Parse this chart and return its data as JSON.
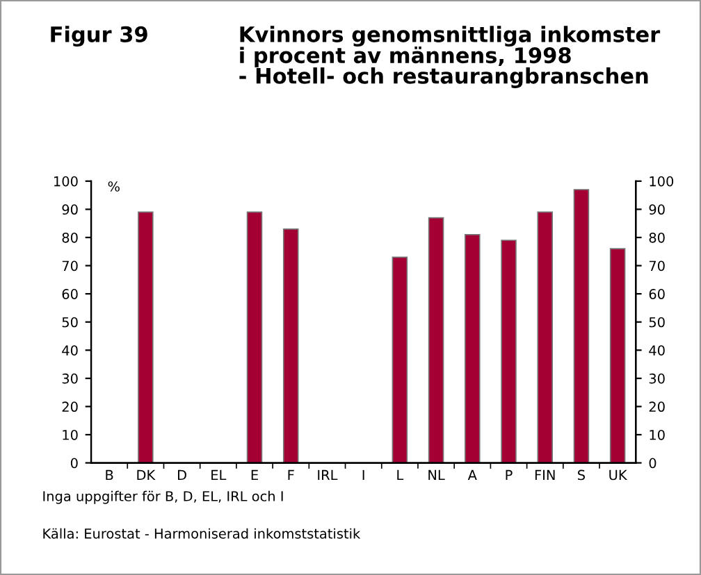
{
  "chart_data": {
    "type": "bar",
    "title": "Figur 39",
    "subtitle": "Kvinnors genomsnittliga inkomster\ni procent av männens, 1998\n- Hotell- och restaurangbranschen",
    "ylabel": "%",
    "categories": [
      "B",
      "DK",
      "D",
      "EL",
      "E",
      "F",
      "IRL",
      "I",
      "L",
      "NL",
      "A",
      "P",
      "FIN",
      "S",
      "UK"
    ],
    "values": [
      null,
      89,
      null,
      null,
      89,
      83,
      null,
      null,
      73,
      87,
      81,
      79,
      89,
      97,
      76
    ],
    "color": "#a50034",
    "ylim": [
      0,
      100
    ],
    "yticks": [
      0,
      10,
      20,
      30,
      40,
      50,
      60,
      70,
      80,
      90,
      100
    ],
    "y2lim": [
      0,
      100
    ],
    "y2ticks": [
      0,
      10,
      20,
      30,
      40,
      50,
      60,
      70,
      80,
      90,
      100
    ],
    "grid": false,
    "legend": false,
    "annotations": [
      "Inga uppgifter för B, D, EL, IRL och I",
      "Källa: Eurostat - Harmoniserad inkomststatistik"
    ]
  }
}
